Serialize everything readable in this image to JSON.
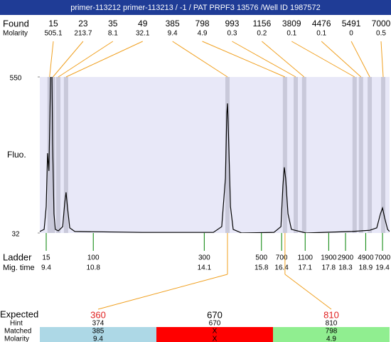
{
  "chart_data": {
    "type": "electropherogram",
    "title": "primer-113212  primer-113213 / -1 / PAT PRPF3 13576 /Well ID 1987572",
    "found": {
      "label": "Found",
      "sizes": [
        15,
        23,
        35,
        49,
        385,
        798,
        993,
        1156,
        3809,
        4476,
        5491,
        7000
      ],
      "molarity_label": "Molarity",
      "molarity": [
        505.1,
        213.7,
        8.1,
        32.1,
        9.4,
        4.9,
        0.3,
        0.2,
        0.1,
        0.1,
        0,
        0.5
      ],
      "times": [
        9.5,
        9.6,
        9.76,
        9.99,
        14.79,
        16.5,
        16.82,
        17.07,
        18.57,
        18.76,
        19.02,
        19.42
      ]
    },
    "y_label": "Fluo.",
    "ylim": [
      32,
      550
    ],
    "yticks": [
      32,
      550
    ],
    "xlim": [
      9.21,
      19.61
    ],
    "trace": {
      "color": "#000000",
      "x": [
        9.21,
        9.34,
        9.4,
        9.44,
        9.48,
        9.53,
        9.57,
        9.59,
        9.63,
        9.67,
        9.76,
        9.89,
        9.95,
        9.99,
        10.03,
        10.1,
        10.25,
        12.25,
        14.37,
        14.62,
        14.73,
        14.77,
        14.79,
        14.81,
        14.88,
        14.96,
        15.21,
        16.17,
        16.38,
        16.44,
        16.48,
        16.52,
        16.59,
        16.69,
        17.12,
        18.49,
        19.02,
        19.23,
        19.34,
        19.4,
        19.46,
        19.55,
        19.61
      ],
      "values": [
        37,
        44,
        120,
        297,
        238,
        545,
        581,
        332,
        96,
        44,
        39,
        53,
        131,
        167,
        120,
        49,
        37,
        34,
        34,
        53,
        214,
        427,
        462,
        403,
        120,
        44,
        32,
        34,
        53,
        190,
        250,
        214,
        96,
        44,
        32,
        37,
        41,
        49,
        96,
        115,
        84,
        44,
        37
      ]
    },
    "ladder": {
      "label": "Ladder",
      "sizes": [
        15,
        100,
        300,
        500,
        700,
        1100,
        1900,
        2900,
        4900,
        7000
      ],
      "time_label": "Mig. time",
      "times": [
        9.4,
        10.8,
        14.1,
        15.8,
        16.4,
        17.1,
        17.8,
        18.3,
        18.9,
        19.4
      ]
    },
    "expected": {
      "label": "Expected",
      "hint_label": "Hint",
      "matched_label": "Matched",
      "molarity_label": "Molarity",
      "columns": [
        {
          "expected": 360,
          "expected_color": "#e02020",
          "hint": 374,
          "matched": 385,
          "molarity": 9.4,
          "color": "#add8e6"
        },
        {
          "expected": 670,
          "expected_color": "#000000",
          "hint": 670,
          "matched": "X",
          "molarity": "X",
          "color": "#ff0000"
        },
        {
          "expected": 810,
          "expected_color": "#e02020",
          "hint": 810,
          "matched": 798,
          "molarity": 4.9,
          "color": "#90ee90"
        }
      ]
    }
  }
}
